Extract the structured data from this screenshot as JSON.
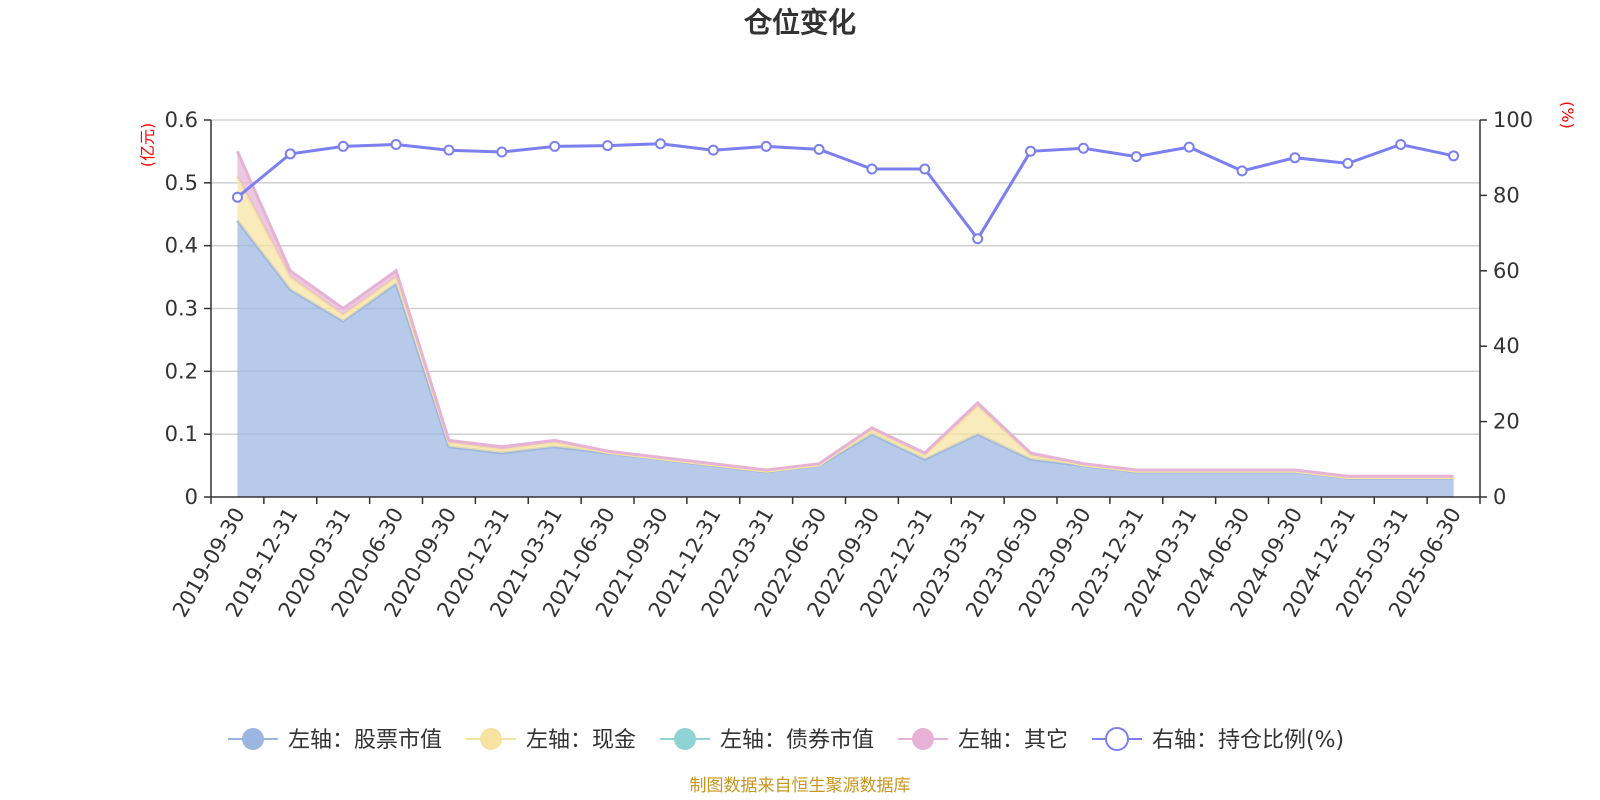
{
  "chart_data": {
    "type": "area",
    "title": "仓位变化",
    "left_axis": {
      "unit_label": "(亿元)",
      "ylim": [
        0,
        0.6
      ],
      "ticks": [
        "0",
        "0.1",
        "0.2",
        "0.3",
        "0.4",
        "0.5",
        "0.6"
      ]
    },
    "right_axis": {
      "unit_label": "(%)",
      "ylim": [
        0,
        100
      ],
      "ticks": [
        "0",
        "20",
        "40",
        "60",
        "80",
        "100"
      ]
    },
    "grid": true,
    "legend_position": "bottom",
    "x": [
      "2019-09-30",
      "2019-12-31",
      "2020-03-31",
      "2020-06-30",
      "2020-09-30",
      "2020-12-31",
      "2021-03-31",
      "2021-06-30",
      "2021-09-30",
      "2021-12-31",
      "2022-03-31",
      "2022-06-30",
      "2022-09-30",
      "2022-12-31",
      "2023-03-31",
      "2023-06-30",
      "2023-09-30",
      "2023-12-31",
      "2024-03-31",
      "2024-06-30",
      "2024-09-30",
      "2024-12-31",
      "2025-03-31",
      "2025-06-30"
    ],
    "series": [
      {
        "name": "左轴：股票市值",
        "axis": "left",
        "kind": "stacked-area",
        "color": "#9bb6e0",
        "values": [
          0.44,
          0.33,
          0.28,
          0.34,
          0.08,
          0.07,
          0.08,
          0.07,
          0.06,
          0.05,
          0.04,
          0.05,
          0.1,
          0.06,
          0.1,
          0.06,
          0.05,
          0.04,
          0.04,
          0.04,
          0.04,
          0.03,
          0.03,
          0.03
        ]
      },
      {
        "name": "左轴：现金",
        "axis": "left",
        "kind": "stacked-area",
        "color": "#f7e3a1",
        "values": [
          0.07,
          0.02,
          0.01,
          0.01,
          0.007,
          0.006,
          0.007,
          0.001,
          0.001,
          0.001,
          0.001,
          0.001,
          0.007,
          0.007,
          0.045,
          0.007,
          0.001,
          0.001,
          0.001,
          0.001,
          0.001,
          0.001,
          0.001,
          0.001
        ]
      },
      {
        "name": "左轴：债券市值",
        "axis": "left",
        "kind": "stacked-area",
        "color": "#8fd3d5",
        "values": [
          0,
          0,
          0,
          0,
          0,
          0,
          0,
          0,
          0,
          0,
          0,
          0,
          0,
          0,
          0,
          0,
          0,
          0,
          0,
          0,
          0,
          0,
          0,
          0
        ]
      },
      {
        "name": "左轴：其它",
        "axis": "left",
        "kind": "stacked-area",
        "color": "#e6b3d6",
        "values": [
          0.04,
          0.01,
          0.01,
          0.01,
          0.003,
          0.004,
          0.003,
          0.002,
          0.002,
          0.002,
          0.002,
          0.002,
          0.003,
          0.003,
          0.005,
          0.003,
          0.002,
          0.002,
          0.002,
          0.002,
          0.002,
          0.002,
          0.002,
          0.002
        ]
      },
      {
        "name": "右轴：持仓比例(%)",
        "axis": "right",
        "kind": "line",
        "color": "#7b7fef",
        "values": [
          79.5,
          91,
          93,
          93.5,
          92,
          91.5,
          93,
          93.2,
          93.7,
          92,
          93,
          92.2,
          87,
          87,
          68.5,
          91.7,
          92.5,
          90.3,
          92.8,
          86.5,
          90,
          88.5,
          93.5,
          90.5
        ]
      }
    ]
  },
  "footer": {
    "source": "制图数据来自恒生聚源数据库"
  }
}
